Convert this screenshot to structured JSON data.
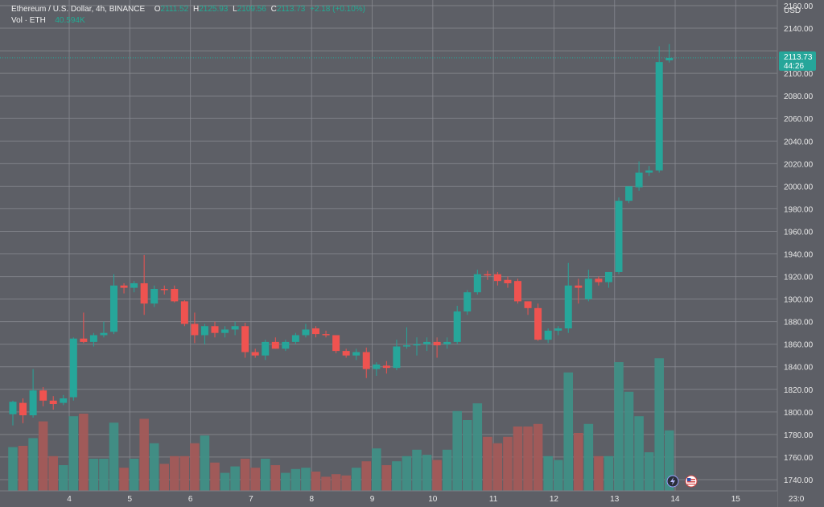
{
  "symbol": {
    "title": "Ethereum / U.S. Dollar, 4h, BINANCE",
    "o_label": "O",
    "o_value": "2111.52",
    "h_label": "H",
    "h_value": "2125.93",
    "l_label": "L",
    "l_value": "2109.56",
    "c_label": "C",
    "c_value": "2113.73",
    "change": "+2.18 (+0.10%)"
  },
  "volume_legend": {
    "label": "Vol · ETH",
    "value": "40.594K"
  },
  "price_scale": {
    "currency": "USD",
    "last_price": "2113.73",
    "countdown": "44:26"
  },
  "colors": {
    "background": "#5d5f66",
    "grid": "#8a8c93",
    "up": "#26a69a",
    "down": "#ef5350",
    "up_volume": "#3f8f86",
    "down_volume": "#a35a58",
    "text": "#e8e8e8"
  },
  "icons": {
    "event_lightning": "lightning-icon",
    "event_flag": "us-flag-icon"
  },
  "chart_data": {
    "type": "candlestick",
    "interval": "4h",
    "ylim": [
      1730,
      2165
    ],
    "y_ticks": [
      2160,
      2140,
      2120,
      2100,
      2080,
      2060,
      2040,
      2020,
      2000,
      1980,
      1960,
      1940,
      1920,
      1900,
      1880,
      1860,
      1840,
      1820,
      1800,
      1780,
      1760,
      1740
    ],
    "x_ticks": [
      "4",
      "5",
      "6",
      "7",
      "8",
      "9",
      "10",
      "11",
      "12",
      "13",
      "14",
      "15",
      "23:0"
    ],
    "x_tick_index": [
      6,
      12,
      18,
      24,
      30,
      36,
      42,
      48,
      54,
      60,
      66,
      72,
      78
    ],
    "candles": [
      {
        "o": 1798,
        "h": 1810,
        "l": 1788,
        "c": 1809,
        "v": 0.34
      },
      {
        "o": 1808,
        "h": 1812,
        "l": 1790,
        "c": 1797,
        "v": 0.35
      },
      {
        "o": 1797,
        "h": 1838,
        "l": 1795,
        "c": 1819,
        "v": 0.41
      },
      {
        "o": 1819,
        "h": 1822,
        "l": 1805,
        "c": 1810,
        "v": 0.54
      },
      {
        "o": 1810,
        "h": 1814,
        "l": 1802,
        "c": 1807,
        "v": 0.27
      },
      {
        "o": 1808,
        "h": 1815,
        "l": 1806,
        "c": 1812,
        "v": 0.2
      },
      {
        "o": 1813,
        "h": 1866,
        "l": 1810,
        "c": 1865,
        "v": 0.58
      },
      {
        "o": 1865,
        "h": 1888,
        "l": 1861,
        "c": 1862,
        "v": 0.6
      },
      {
        "o": 1862,
        "h": 1870,
        "l": 1858,
        "c": 1868,
        "v": 0.25
      },
      {
        "o": 1868,
        "h": 1880,
        "l": 1866,
        "c": 1870,
        "v": 0.25
      },
      {
        "o": 1871,
        "h": 1922,
        "l": 1869,
        "c": 1912,
        "v": 0.53
      },
      {
        "o": 1912,
        "h": 1914,
        "l": 1905,
        "c": 1910,
        "v": 0.18
      },
      {
        "o": 1910,
        "h": 1916,
        "l": 1906,
        "c": 1914,
        "v": 0.25
      },
      {
        "o": 1914,
        "h": 1939,
        "l": 1886,
        "c": 1896,
        "v": 0.56
      },
      {
        "o": 1896,
        "h": 1912,
        "l": 1893,
        "c": 1909,
        "v": 0.37
      },
      {
        "o": 1909,
        "h": 1912,
        "l": 1904,
        "c": 1908,
        "v": 0.21
      },
      {
        "o": 1909,
        "h": 1912,
        "l": 1897,
        "c": 1898,
        "v": 0.27
      },
      {
        "o": 1898,
        "h": 1899,
        "l": 1876,
        "c": 1878,
        "v": 0.27
      },
      {
        "o": 1878,
        "h": 1888,
        "l": 1861,
        "c": 1868,
        "v": 0.37
      },
      {
        "o": 1868,
        "h": 1878,
        "l": 1860,
        "c": 1876,
        "v": 0.43
      },
      {
        "o": 1876,
        "h": 1880,
        "l": 1866,
        "c": 1870,
        "v": 0.22
      },
      {
        "o": 1870,
        "h": 1876,
        "l": 1866,
        "c": 1873,
        "v": 0.14
      },
      {
        "o": 1873,
        "h": 1880,
        "l": 1868,
        "c": 1876,
        "v": 0.19
      },
      {
        "o": 1876,
        "h": 1879,
        "l": 1848,
        "c": 1853,
        "v": 0.25
      },
      {
        "o": 1853,
        "h": 1856,
        "l": 1848,
        "c": 1850,
        "v": 0.18
      },
      {
        "o": 1850,
        "h": 1864,
        "l": 1846,
        "c": 1862,
        "v": 0.25
      },
      {
        "o": 1862,
        "h": 1866,
        "l": 1856,
        "c": 1856,
        "v": 0.2
      },
      {
        "o": 1856,
        "h": 1864,
        "l": 1854,
        "c": 1862,
        "v": 0.14
      },
      {
        "o": 1862,
        "h": 1870,
        "l": 1860,
        "c": 1868,
        "v": 0.17
      },
      {
        "o": 1868,
        "h": 1878,
        "l": 1866,
        "c": 1873,
        "v": 0.18
      },
      {
        "o": 1874,
        "h": 1876,
        "l": 1866,
        "c": 1869,
        "v": 0.15
      },
      {
        "o": 1869,
        "h": 1872,
        "l": 1866,
        "c": 1868,
        "v": 0.11
      },
      {
        "o": 1868,
        "h": 1868,
        "l": 1852,
        "c": 1854,
        "v": 0.13
      },
      {
        "o": 1854,
        "h": 1856,
        "l": 1848,
        "c": 1850,
        "v": 0.12
      },
      {
        "o": 1850,
        "h": 1856,
        "l": 1846,
        "c": 1853,
        "v": 0.18
      },
      {
        "o": 1853,
        "h": 1857,
        "l": 1830,
        "c": 1838,
        "v": 0.23
      },
      {
        "o": 1838,
        "h": 1844,
        "l": 1832,
        "c": 1842,
        "v": 0.33
      },
      {
        "o": 1841,
        "h": 1845,
        "l": 1834,
        "c": 1839,
        "v": 0.2
      },
      {
        "o": 1839,
        "h": 1864,
        "l": 1837,
        "c": 1858,
        "v": 0.23
      },
      {
        "o": 1858,
        "h": 1875,
        "l": 1856,
        "c": 1859,
        "v": 0.27
      },
      {
        "o": 1859,
        "h": 1866,
        "l": 1850,
        "c": 1860,
        "v": 0.32
      },
      {
        "o": 1860,
        "h": 1866,
        "l": 1854,
        "c": 1862,
        "v": 0.28
      },
      {
        "o": 1862,
        "h": 1866,
        "l": 1848,
        "c": 1859,
        "v": 0.24
      },
      {
        "o": 1860,
        "h": 1866,
        "l": 1856,
        "c": 1862,
        "v": 0.32
      },
      {
        "o": 1862,
        "h": 1894,
        "l": 1860,
        "c": 1889,
        "v": 0.62
      },
      {
        "o": 1889,
        "h": 1908,
        "l": 1886,
        "c": 1906,
        "v": 0.55
      },
      {
        "o": 1906,
        "h": 1926,
        "l": 1904,
        "c": 1922,
        "v": 0.68
      },
      {
        "o": 1922,
        "h": 1925,
        "l": 1917,
        "c": 1921,
        "v": 0.42
      },
      {
        "o": 1922,
        "h": 1924,
        "l": 1912,
        "c": 1916,
        "v": 0.37
      },
      {
        "o": 1917,
        "h": 1920,
        "l": 1910,
        "c": 1914,
        "v": 0.42
      },
      {
        "o": 1916,
        "h": 1918,
        "l": 1896,
        "c": 1898,
        "v": 0.5
      },
      {
        "o": 1898,
        "h": 1898,
        "l": 1886,
        "c": 1892,
        "v": 0.5
      },
      {
        "o": 1892,
        "h": 1896,
        "l": 1863,
        "c": 1864,
        "v": 0.52
      },
      {
        "o": 1864,
        "h": 1874,
        "l": 1861,
        "c": 1872,
        "v": 0.27
      },
      {
        "o": 1872,
        "h": 1876,
        "l": 1868,
        "c": 1874,
        "v": 0.24
      },
      {
        "o": 1874,
        "h": 1932,
        "l": 1870,
        "c": 1912,
        "v": 0.92
      },
      {
        "o": 1912,
        "h": 1918,
        "l": 1896,
        "c": 1910,
        "v": 0.45
      },
      {
        "o": 1900,
        "h": 1926,
        "l": 1898,
        "c": 1918,
        "v": 0.52
      },
      {
        "o": 1918,
        "h": 1920,
        "l": 1912,
        "c": 1915,
        "v": 0.27
      },
      {
        "o": 1915,
        "h": 1924,
        "l": 1910,
        "c": 1924,
        "v": 0.27
      },
      {
        "o": 1924,
        "h": 1990,
        "l": 1922,
        "c": 1987,
        "v": 1.0
      },
      {
        "o": 1987,
        "h": 1998,
        "l": 1985,
        "c": 2000,
        "v": 0.77
      },
      {
        "o": 1999,
        "h": 2022,
        "l": 1996,
        "c": 2012,
        "v": 0.58
      },
      {
        "o": 2012,
        "h": 2018,
        "l": 2009,
        "c": 2014,
        "v": 0.3
      },
      {
        "o": 2014,
        "h": 2124,
        "l": 2012,
        "c": 2110,
        "v": 1.03
      },
      {
        "o": 2111.52,
        "h": 2125.93,
        "l": 2109.56,
        "c": 2113.73,
        "v": 0.47
      }
    ]
  }
}
